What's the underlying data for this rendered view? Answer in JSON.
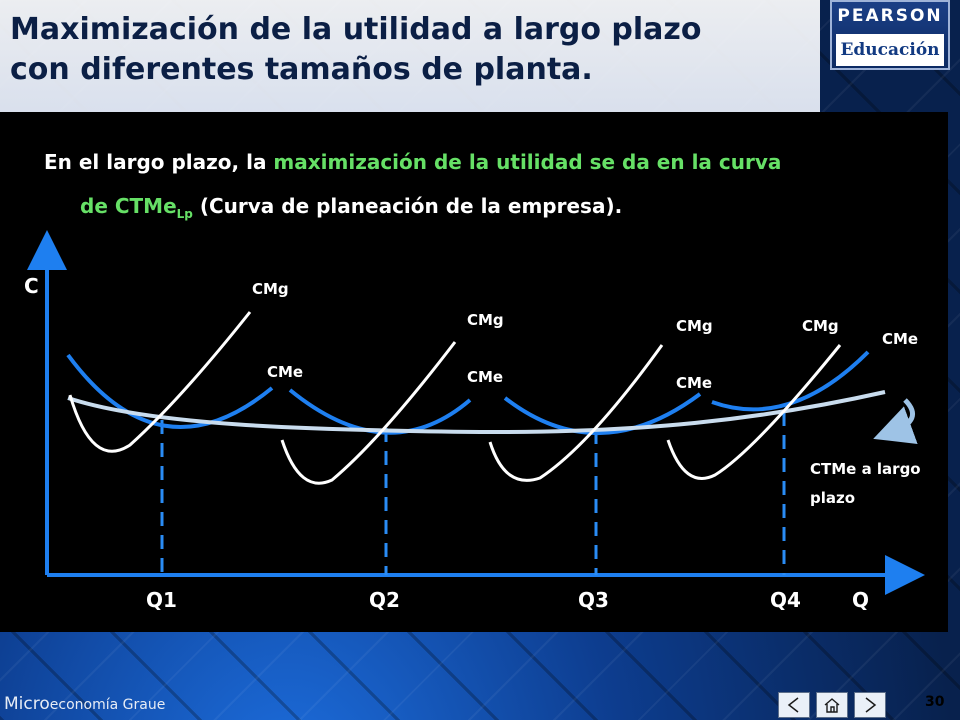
{
  "title": {
    "line1": "Maximización de la utilidad a largo plazo",
    "line2": "con diferentes tamaños de planta."
  },
  "logo": {
    "top": "PEARSON",
    "bottom": "Educación"
  },
  "intro": {
    "part1": "En el largo plazo, la ",
    "highlight1": "maximización de la utilidad se da en la curva",
    "highlight2": "de CTMe",
    "sub": "Lp",
    "part2": " (Curva de planeación de la empresa)."
  },
  "diagram": {
    "y_axis_label": "C",
    "x_axis_label": "Q",
    "x_ticks": [
      "Q1",
      "Q2",
      "Q3",
      "Q4"
    ],
    "curve_labels": {
      "cmg1": "CMg",
      "cme1": "CMe",
      "cmg2": "CMg",
      "cme2": "CMe",
      "cmg3": "CMg",
      "cme3": "CMe",
      "cmg4": "CMg",
      "cme4": "CMe",
      "lr_line1": "CTMe a largo",
      "lr_line2": "plazo"
    },
    "colors": {
      "cme": "#1e7ff0",
      "cmg": "#ffffff",
      "long_run": "#c9dcee",
      "dashed": "#2a8cf5",
      "arrow": "#9ec3e6"
    }
  },
  "footer": {
    "brand_prefix": "Micro",
    "brand_rest": "economía Graue",
    "page": "30"
  }
}
